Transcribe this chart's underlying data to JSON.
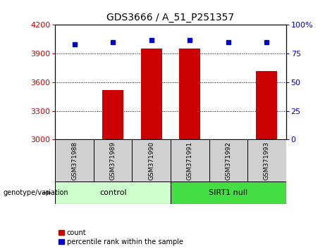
{
  "title": "GDS3666 / A_51_P251357",
  "samples": [
    "GSM371988",
    "GSM371989",
    "GSM371990",
    "GSM371991",
    "GSM371992",
    "GSM371993"
  ],
  "counts": [
    3002,
    3520,
    3950,
    3950,
    3005,
    3720
  ],
  "percentiles": [
    83,
    85,
    87,
    87,
    85,
    85
  ],
  "ylim_left": [
    3000,
    4200
  ],
  "ylim_right": [
    0,
    100
  ],
  "yticks_left": [
    3000,
    3300,
    3600,
    3900,
    4200
  ],
  "yticks_right": [
    0,
    25,
    50,
    75,
    100
  ],
  "bar_color": "#cc0000",
  "dot_color": "#0000cc",
  "bar_width": 0.55,
  "groups": [
    {
      "label": "control",
      "samples": [
        0,
        1,
        2
      ],
      "color": "#ccffcc"
    },
    {
      "label": "SIRT1 null",
      "samples": [
        3,
        4,
        5
      ],
      "color": "#44dd44"
    }
  ],
  "group_label": "genotype/variation",
  "legend_count": "count",
  "legend_percentile": "percentile rank within the sample",
  "title_fontsize": 10,
  "tick_fontsize": 8,
  "sample_label_fontsize": 6.5,
  "group_label_fontsize": 7,
  "group_text_fontsize": 8,
  "legend_fontsize": 7
}
